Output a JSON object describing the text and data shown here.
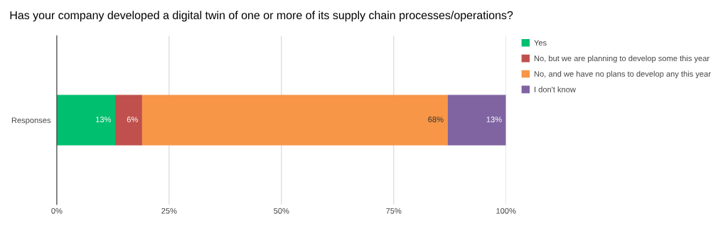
{
  "chart_data": {
    "type": "bar",
    "orientation": "horizontal",
    "stacked": true,
    "title": "Has your company developed a digital twin of one or more of its supply chain processes/operations?",
    "categories": [
      "Responses"
    ],
    "series": [
      {
        "name": "Yes",
        "color": "#00bf6f",
        "values": [
          13
        ],
        "value_labels": [
          "13%"
        ]
      },
      {
        "name": "No, but we are planning to develop some this year",
        "color": "#c0504d",
        "values": [
          6
        ],
        "value_labels": [
          "6%"
        ]
      },
      {
        "name": "No, and we have no plans to develop any this year",
        "color": "#f79646",
        "values": [
          68
        ],
        "value_labels": [
          "68%"
        ]
      },
      {
        "name": "I don't know",
        "color": "#8064a2",
        "values": [
          13
        ],
        "value_labels": [
          "13%"
        ]
      }
    ],
    "xlim": [
      0,
      100
    ],
    "xticks": [
      {
        "value": 0,
        "label": "0%"
      },
      {
        "value": 25,
        "label": "25%"
      },
      {
        "value": 50,
        "label": "50%"
      },
      {
        "value": 75,
        "label": "75%"
      },
      {
        "value": 100,
        "label": "100%"
      }
    ],
    "grid": "x",
    "legend": "top right"
  }
}
